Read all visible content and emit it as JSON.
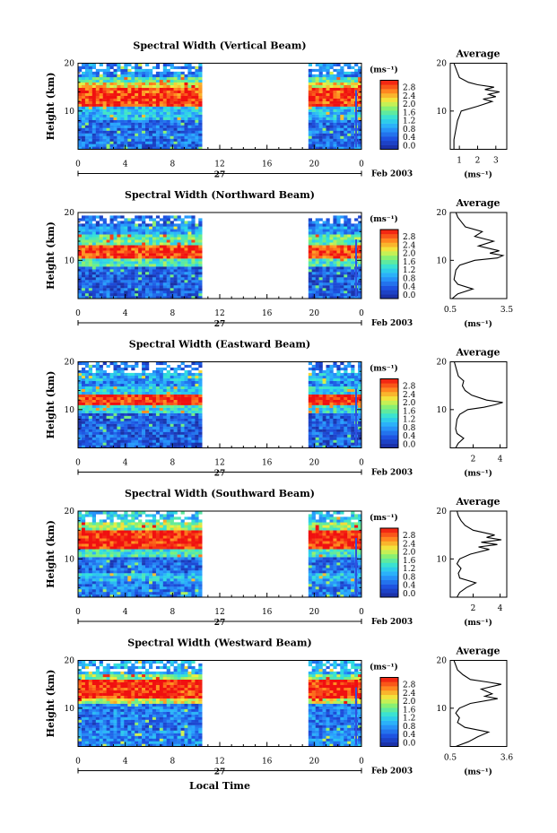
{
  "figure": {
    "xaxis_label": "Local Time",
    "date_label": "Feb 2003",
    "day_label": "27",
    "height_label": "Height (km)",
    "unit_label": "(ms⁻¹)",
    "average_title": "Average"
  },
  "chart_data": [
    {
      "type": "heatmap",
      "title": "Spectral Width (Vertical Beam)",
      "ylabel": "Height (km)",
      "xlabel": "Local Time",
      "x_ticks": [
        "0",
        "4",
        "8",
        "12",
        "16",
        "20",
        "0"
      ],
      "y_ticks": [
        "10",
        "20"
      ],
      "xlim": [
        0,
        24
      ],
      "ylim": [
        2,
        20
      ],
      "data_segments": [
        [
          0,
          10.5
        ],
        [
          19.5,
          24
        ]
      ],
      "colorbar": {
        "label": "(ms⁻¹)",
        "ticks": [
          "0.0",
          "0.4",
          "0.8",
          "1.2",
          "1.6",
          "2.0",
          "2.4",
          "2.8"
        ],
        "range": [
          0,
          3
        ]
      },
      "layers": [
        {
          "from": 2,
          "to": 8,
          "level": 0.6
        },
        {
          "from": 8,
          "to": 10.5,
          "level": 1.1
        },
        {
          "from": 10.5,
          "to": 14.5,
          "level": 2.8
        },
        {
          "from": 14.5,
          "to": 16,
          "level": 2.2
        },
        {
          "from": 16,
          "to": 17,
          "level": 1.5
        },
        {
          "from": 17,
          "to": 19.5,
          "level": 0.8
        }
      ],
      "average": {
        "xticks": [
          "1",
          "2",
          "3"
        ],
        "xlim": [
          0.5,
          3.6
        ],
        "xlabel": "(ms⁻¹)",
        "profile": [
          [
            2,
            0.7
          ],
          [
            4,
            0.7
          ],
          [
            6,
            0.8
          ],
          [
            8,
            0.9
          ],
          [
            9,
            1.0
          ],
          [
            10,
            1.1
          ],
          [
            11,
            2.0
          ],
          [
            12,
            2.8
          ],
          [
            12.5,
            2.3
          ],
          [
            13,
            3.0
          ],
          [
            13.5,
            2.6
          ],
          [
            14,
            3.2
          ],
          [
            14.5,
            2.4
          ],
          [
            15,
            2.9
          ],
          [
            15.5,
            2.0
          ],
          [
            16,
            1.5
          ],
          [
            17,
            1.0
          ],
          [
            18,
            0.9
          ],
          [
            19,
            0.8
          ],
          [
            20,
            0.7
          ]
        ]
      }
    },
    {
      "type": "heatmap",
      "title": "Spectral Width (Northward Beam)",
      "ylabel": "Height (km)",
      "xlabel": "Local Time",
      "x_ticks": [
        "0",
        "4",
        "8",
        "12",
        "16",
        "20",
        "0"
      ],
      "y_ticks": [
        "10",
        "20"
      ],
      "xlim": [
        0,
        24
      ],
      "ylim": [
        2,
        20
      ],
      "data_segments": [
        [
          0,
          10.5
        ],
        [
          19.5,
          24
        ]
      ],
      "colorbar": {
        "label": "(ms⁻¹)",
        "ticks": [
          "0.0",
          "0.4",
          "0.8",
          "1.2",
          "1.6",
          "2.0",
          "2.4",
          "2.8"
        ],
        "range": [
          0,
          3
        ]
      },
      "layers": [
        {
          "from": 2,
          "to": 8.5,
          "level": 0.5
        },
        {
          "from": 8.5,
          "to": 10,
          "level": 1.5
        },
        {
          "from": 10,
          "to": 13,
          "level": 2.8
        },
        {
          "from": 13,
          "to": 15,
          "level": 1.6
        },
        {
          "from": 15,
          "to": 17,
          "level": 0.9
        },
        {
          "from": 17,
          "to": 19,
          "level": 0.6
        }
      ],
      "average": {
        "xticks": [
          "0.5",
          "3.5"
        ],
        "xlim": [
          0.5,
          3.5
        ],
        "xlabel": "(ms⁻¹)",
        "profile": [
          [
            2,
            0.6
          ],
          [
            3,
            0.9
          ],
          [
            4,
            1.7
          ],
          [
            5,
            0.9
          ],
          [
            6,
            0.7
          ],
          [
            8,
            0.8
          ],
          [
            9,
            1.0
          ],
          [
            10,
            1.8
          ],
          [
            10.5,
            3.0
          ],
          [
            11,
            3.3
          ],
          [
            11.5,
            2.6
          ],
          [
            12,
            3.1
          ],
          [
            13,
            2.0
          ],
          [
            14,
            2.8
          ],
          [
            15,
            1.8
          ],
          [
            16,
            2.2
          ],
          [
            17,
            1.3
          ],
          [
            18,
            1.1
          ],
          [
            19,
            0.9
          ],
          [
            20,
            0.8
          ]
        ]
      }
    },
    {
      "type": "heatmap",
      "title": "Spectral Width (Eastward Beam)",
      "ylabel": "Height (km)",
      "xlabel": "Local Time",
      "x_ticks": [
        "0",
        "4",
        "8",
        "12",
        "16",
        "20",
        "0"
      ],
      "y_ticks": [
        "10",
        "20"
      ],
      "xlim": [
        0,
        24
      ],
      "ylim": [
        2,
        20
      ],
      "data_segments": [
        [
          0,
          10.5
        ],
        [
          19.5,
          24
        ]
      ],
      "colorbar": {
        "label": "(ms⁻¹)",
        "ticks": [
          "0.0",
          "0.4",
          "0.8",
          "1.2",
          "1.6",
          "2.0",
          "2.4",
          "2.8"
        ],
        "range": [
          0,
          3
        ]
      },
      "layers": [
        {
          "from": 2,
          "to": 9,
          "level": 0.5
        },
        {
          "from": 9,
          "to": 10.5,
          "level": 1.3
        },
        {
          "from": 10.5,
          "to": 13,
          "level": 2.9
        },
        {
          "from": 13,
          "to": 14.5,
          "level": 1.2
        },
        {
          "from": 14.5,
          "to": 16,
          "level": 0.8
        },
        {
          "from": 16,
          "to": 18,
          "level": 1.0
        },
        {
          "from": 18,
          "to": 19.5,
          "level": 0.6
        }
      ],
      "average": {
        "xticks": [
          "2",
          "4"
        ],
        "xlim": [
          0.3,
          4.5
        ],
        "xlabel": "(ms⁻¹)",
        "profile": [
          [
            2,
            0.7
          ],
          [
            3,
            0.9
          ],
          [
            4,
            1.3
          ],
          [
            5,
            0.8
          ],
          [
            6,
            0.7
          ],
          [
            8,
            0.8
          ],
          [
            9,
            1.0
          ],
          [
            10,
            1.6
          ],
          [
            10.5,
            2.8
          ],
          [
            11,
            3.6
          ],
          [
            11.5,
            4.2
          ],
          [
            12,
            3.0
          ],
          [
            13,
            1.9
          ],
          [
            14,
            1.4
          ],
          [
            15,
            1.2
          ],
          [
            16,
            1.3
          ],
          [
            17,
            0.9
          ],
          [
            18,
            0.8
          ],
          [
            19,
            0.7
          ],
          [
            20,
            0.6
          ]
        ]
      }
    },
    {
      "type": "heatmap",
      "title": "Spectral Width (Southward Beam)",
      "ylabel": "Height (km)",
      "xlabel": "Local Time",
      "x_ticks": [
        "0",
        "4",
        "8",
        "12",
        "16",
        "20",
        "0"
      ],
      "y_ticks": [
        "10",
        "20"
      ],
      "xlim": [
        0,
        24
      ],
      "ylim": [
        2,
        20
      ],
      "data_segments": [
        [
          0,
          10.5
        ],
        [
          19.5,
          24
        ]
      ],
      "colorbar": {
        "label": "(ms⁻¹)",
        "ticks": [
          "0.0",
          "0.4",
          "0.8",
          "1.2",
          "1.6",
          "2.0",
          "2.4",
          "2.8"
        ],
        "range": [
          0,
          3
        ]
      },
      "layers": [
        {
          "from": 2,
          "to": 5,
          "level": 0.7
        },
        {
          "from": 5,
          "to": 7,
          "level": 1.1
        },
        {
          "from": 7,
          "to": 10,
          "level": 0.6
        },
        {
          "from": 10,
          "to": 12,
          "level": 1.4
        },
        {
          "from": 12,
          "to": 16,
          "level": 2.9
        },
        {
          "from": 16,
          "to": 17.5,
          "level": 1.8
        },
        {
          "from": 17.5,
          "to": 19.5,
          "level": 1.2
        }
      ],
      "average": {
        "xticks": [
          "2",
          "4"
        ],
        "xlim": [
          0.3,
          4.5
        ],
        "xlabel": "(ms⁻¹)",
        "profile": [
          [
            2,
            0.8
          ],
          [
            3,
            1.0
          ],
          [
            4,
            1.5
          ],
          [
            5,
            2.2
          ],
          [
            6,
            1.0
          ],
          [
            7,
            0.9
          ],
          [
            8,
            1.1
          ],
          [
            9,
            0.8
          ],
          [
            10,
            1.0
          ],
          [
            11,
            1.8
          ],
          [
            12,
            3.2
          ],
          [
            12.5,
            2.4
          ],
          [
            13,
            3.8
          ],
          [
            13.5,
            2.6
          ],
          [
            14,
            4.1
          ],
          [
            14.5,
            3.0
          ],
          [
            15,
            3.6
          ],
          [
            16,
            2.0
          ],
          [
            17,
            1.4
          ],
          [
            18,
            1.1
          ],
          [
            19,
            0.9
          ],
          [
            20,
            0.8
          ]
        ]
      }
    },
    {
      "type": "heatmap",
      "title": "Spectral Width (Westward Beam)",
      "ylabel": "Height (km)",
      "xlabel": "Local Time",
      "x_ticks": [
        "0",
        "4",
        "8",
        "12",
        "16",
        "20",
        "0"
      ],
      "y_ticks": [
        "10",
        "20"
      ],
      "xlim": [
        0,
        24
      ],
      "ylim": [
        2,
        20
      ],
      "data_segments": [
        [
          0,
          10.5
        ],
        [
          19.5,
          24
        ]
      ],
      "colorbar": {
        "label": "(ms⁻¹)",
        "ticks": [
          "0.0",
          "0.4",
          "0.8",
          "1.2",
          "1.6",
          "2.0",
          "2.4",
          "2.8"
        ],
        "range": [
          0,
          3
        ]
      },
      "layers": [
        {
          "from": 2,
          "to": 5,
          "level": 0.8
        },
        {
          "from": 5,
          "to": 7,
          "level": 0.6
        },
        {
          "from": 7,
          "to": 10.5,
          "level": 0.7
        },
        {
          "from": 10.5,
          "to": 12,
          "level": 2.0
        },
        {
          "from": 12,
          "to": 15.5,
          "level": 2.9
        },
        {
          "from": 15.5,
          "to": 17,
          "level": 1.7
        },
        {
          "from": 17,
          "to": 19.5,
          "level": 1.0
        }
      ],
      "average": {
        "xticks": [
          "0.5",
          "3.6"
        ],
        "xlim": [
          0.5,
          3.6
        ],
        "xlabel": "(ms⁻¹)",
        "profile": [
          [
            2,
            0.8
          ],
          [
            3,
            1.5
          ],
          [
            4,
            2.0
          ],
          [
            5,
            2.6
          ],
          [
            6,
            1.3
          ],
          [
            7,
            0.9
          ],
          [
            8,
            1.0
          ],
          [
            9,
            0.8
          ],
          [
            10,
            1.0
          ],
          [
            11,
            1.6
          ],
          [
            12,
            3.1
          ],
          [
            12.5,
            2.4
          ],
          [
            13,
            2.8
          ],
          [
            14,
            2.2
          ],
          [
            15,
            3.3
          ],
          [
            15.5,
            2.5
          ],
          [
            16,
            1.6
          ],
          [
            17,
            1.2
          ],
          [
            18,
            0.9
          ],
          [
            19,
            0.8
          ],
          [
            20,
            0.7
          ]
        ]
      }
    }
  ]
}
